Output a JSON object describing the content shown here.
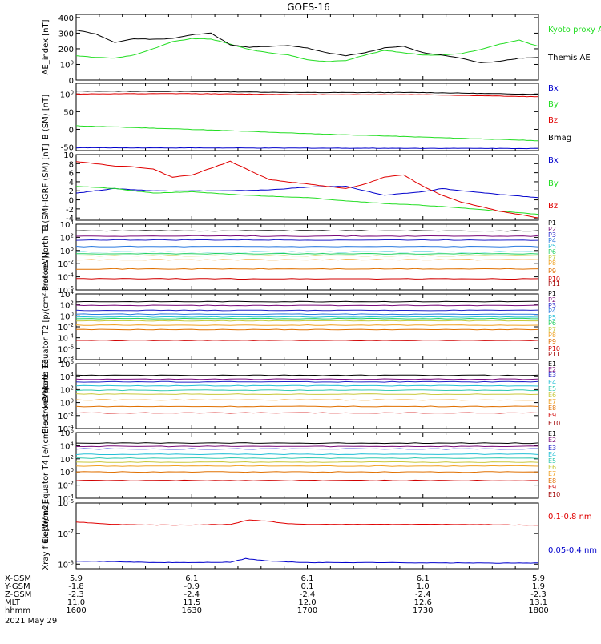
{
  "title": "GOES-16",
  "colors": {
    "black": "#000000",
    "red": "#e00000",
    "green": "#22dd22",
    "blue": "#0000cc",
    "P": [
      "#000000",
      "#7a0a7a",
      "#2020c8",
      "#2a7ae0",
      "#22bfd6",
      "#20d060",
      "#c8c83a",
      "#f0a020",
      "#e07000",
      "#d00000",
      "#a00000"
    ],
    "E": [
      "#000000",
      "#7a0a7a",
      "#2020c8",
      "#22bfd6",
      "#30c8b0",
      "#c8c83a",
      "#f0a020",
      "#e07000",
      "#d00000",
      "#a00000"
    ]
  },
  "xaxis": {
    "ticks": [
      "1600",
      "1630",
      "1700",
      "1730",
      "1800"
    ],
    "rows": [
      {
        "label": "X-GSM",
        "values": [
          "5.9",
          "6.1",
          "6.1",
          "6.1",
          "5.9"
        ]
      },
      {
        "label": "Y-GSM",
        "values": [
          "-1.8",
          "-0.9",
          "0.1",
          "1.0",
          "1.9"
        ]
      },
      {
        "label": "Z-GSM",
        "values": [
          "-2.3",
          "-2.4",
          "-2.4",
          "-2.4",
          "-2.3"
        ]
      },
      {
        "label": "MLT",
        "values": [
          "11.0",
          "11.5",
          "12.0",
          "12.6",
          "13.1"
        ]
      },
      {
        "label": "hhmm",
        "values": [
          "1600",
          "1630",
          "1700",
          "1730",
          "1800"
        ]
      }
    ],
    "date": "2021 May 29"
  },
  "chart_data": [
    {
      "type": "line",
      "ylabel": "AE_index [nT]",
      "ylim": [
        0,
        420
      ],
      "yticks": [
        "0",
        "100",
        "200",
        "300",
        "400"
      ],
      "series": [
        {
          "name": "Kyoto proxy AE",
          "color": "#22dd22",
          "x": [
            0,
            5,
            10,
            15,
            20,
            25,
            30,
            35,
            40,
            45,
            50,
            55,
            60,
            65,
            70,
            75,
            80,
            85,
            90,
            95,
            100,
            105,
            110,
            115,
            120
          ],
          "y": [
            155,
            145,
            140,
            160,
            200,
            245,
            265,
            262,
            230,
            195,
            175,
            160,
            130,
            118,
            125,
            160,
            190,
            175,
            160,
            160,
            170,
            195,
            230,
            255,
            215
          ]
        },
        {
          "name": "Themis AE",
          "color": "#000000",
          "x": [
            0,
            5,
            10,
            15,
            20,
            25,
            30,
            35,
            40,
            45,
            50,
            55,
            60,
            65,
            70,
            75,
            80,
            85,
            90,
            95,
            100,
            105,
            110,
            115,
            120
          ],
          "y": [
            320,
            295,
            240,
            265,
            260,
            265,
            290,
            300,
            225,
            210,
            215,
            220,
            205,
            175,
            155,
            175,
            205,
            215,
            175,
            160,
            140,
            110,
            120,
            140,
            145
          ]
        }
      ]
    },
    {
      "type": "line",
      "ylabel": "B (SM) [nT]",
      "ylim": [
        -60,
        130
      ],
      "yticks": [
        "-50",
        "0",
        "50",
        "100"
      ],
      "series": [
        {
          "name": "Bx",
          "color": "#0000cc",
          "x": [
            0,
            120
          ],
          "y": [
            -52,
            -54
          ]
        },
        {
          "name": "By",
          "color": "#22dd22",
          "x": [
            0,
            30,
            60,
            90,
            120
          ],
          "y": [
            10,
            0,
            -12,
            -22,
            -32
          ]
        },
        {
          "name": "Bz",
          "color": "#e00000",
          "x": [
            0,
            30,
            60,
            90,
            120
          ],
          "y": [
            100,
            101,
            98,
            98,
            92
          ]
        },
        {
          "name": "Bmag",
          "color": "#000000",
          "x": [
            0,
            30,
            60,
            90,
            120
          ],
          "y": [
            108,
            107,
            104,
            104,
            99
          ]
        }
      ]
    },
    {
      "type": "line",
      "ylabel": "B (SM)-IGRF (SM) [nT]",
      "ylim": [
        -4.5,
        10
      ],
      "yticks": [
        "-4",
        "-2",
        "0",
        "2",
        "4",
        "6",
        "8",
        "10"
      ],
      "series": [
        {
          "name": "Bx",
          "color": "#0000cc",
          "x": [
            0,
            10,
            20,
            30,
            40,
            50,
            60,
            70,
            80,
            90,
            95,
            100,
            110,
            120
          ],
          "y": [
            1.5,
            2.5,
            2.0,
            2.0,
            2.0,
            2.2,
            2.8,
            3.0,
            1.0,
            1.8,
            2.5,
            2.0,
            1.2,
            0.5
          ]
        },
        {
          "name": "By",
          "color": "#22dd22",
          "x": [
            0,
            10,
            20,
            30,
            40,
            50,
            60,
            70,
            80,
            90,
            100,
            110,
            120
          ],
          "y": [
            3.0,
            2.5,
            1.5,
            1.8,
            1.2,
            0.8,
            0.5,
            -0.2,
            -0.8,
            -1.2,
            -1.8,
            -2.5,
            -3.2
          ]
        },
        {
          "name": "Bz",
          "color": "#e00000",
          "x": [
            0,
            5,
            10,
            15,
            20,
            25,
            30,
            35,
            40,
            45,
            50,
            55,
            60,
            65,
            70,
            75,
            80,
            85,
            90,
            95,
            100,
            105,
            110,
            115,
            120
          ],
          "y": [
            8.5,
            8.0,
            7.5,
            7.3,
            6.8,
            5.0,
            5.5,
            7.0,
            8.5,
            6.5,
            4.5,
            4.0,
            3.5,
            3.0,
            2.5,
            3.5,
            5.0,
            5.5,
            3.0,
            1.0,
            -0.5,
            -1.5,
            -2.5,
            -3.2,
            -4.0
          ]
        }
      ]
    },
    {
      "type": "line",
      "ylabel": "Protons North T1",
      "ylim": [
        -6,
        4
      ],
      "yticks": [
        "10-6",
        "10-4",
        "10-2",
        "100",
        "102",
        "104"
      ],
      "series": [
        {
          "name": "P1",
          "color": "#000000",
          "levels": [
            3.0
          ]
        },
        {
          "name": "P2",
          "color": "#7a0a7a",
          "levels": [
            2.2
          ]
        },
        {
          "name": "P3",
          "color": "#2020c8",
          "levels": [
            1.6
          ]
        },
        {
          "name": "P4",
          "color": "#2a7ae0",
          "levels": [
            0.6
          ]
        },
        {
          "name": "P5",
          "color": "#22bfd6",
          "levels": [
            -0.2
          ]
        },
        {
          "name": "P6",
          "color": "#20d060",
          "levels": [
            -0.5
          ]
        },
        {
          "name": "P7",
          "color": "#c8c83a",
          "levels": [
            -0.8
          ]
        },
        {
          "name": "P8",
          "color": "#f0a020",
          "levels": [
            -1.4
          ]
        },
        {
          "name": "P9",
          "color": "#e07000",
          "levels": [
            -2.8
          ]
        },
        {
          "name": "P10",
          "color": "#d00000",
          "levels": [
            -4.3
          ]
        },
        {
          "name": "P11",
          "color": "#a00000",
          "levels": []
        }
      ]
    },
    {
      "type": "line",
      "ylabel": "Protons Equator T2 [p/(cm²-s-sr-keV)]",
      "ylim": [
        -8,
        4
      ],
      "yticks": [
        "10-8",
        "10-6",
        "10-4",
        "10-2",
        "100",
        "102",
        "104"
      ],
      "series": [
        {
          "name": "P1",
          "color": "#000000",
          "levels": [
            2.6
          ]
        },
        {
          "name": "P2",
          "color": "#7a0a7a",
          "levels": [
            1.9
          ]
        },
        {
          "name": "P3",
          "color": "#2020c8",
          "levels": [
            1.0
          ]
        },
        {
          "name": "P4",
          "color": "#2a7ae0",
          "levels": [
            0.3
          ]
        },
        {
          "name": "P5",
          "color": "#22bfd6",
          "levels": [
            -0.2
          ]
        },
        {
          "name": "P6",
          "color": "#20d060",
          "levels": [
            -0.5
          ]
        },
        {
          "name": "P7",
          "color": "#c8c83a",
          "levels": [
            -0.9
          ]
        },
        {
          "name": "P8",
          "color": "#f0a020",
          "levels": [
            -1.7
          ]
        },
        {
          "name": "P9",
          "color": "#e07000",
          "levels": [
            -2.5
          ]
        },
        {
          "name": "P10",
          "color": "#d00000",
          "levels": [
            -4.5
          ]
        },
        {
          "name": "P11",
          "color": "#a00000",
          "levels": []
        }
      ]
    },
    {
      "type": "line",
      "ylabel": "Electrons North T3",
      "ylim": [
        -4,
        6
      ],
      "yticks": [
        "10-4",
        "10-2",
        "100",
        "102",
        "104",
        "106"
      ],
      "series": [
        {
          "name": "E1",
          "color": "#000000",
          "levels": [
            4.2
          ]
        },
        {
          "name": "E2",
          "color": "#7a0a7a",
          "levels": [
            3.6
          ]
        },
        {
          "name": "E3",
          "color": "#2020c8",
          "levels": [
            3.2
          ]
        },
        {
          "name": "E4",
          "color": "#22bfd6",
          "levels": [
            2.6
          ]
        },
        {
          "name": "E5",
          "color": "#30c8b0",
          "levels": [
            1.9
          ]
        },
        {
          "name": "E6",
          "color": "#c8c83a",
          "levels": [
            1.3
          ]
        },
        {
          "name": "E7",
          "color": "#f0a020",
          "levels": [
            0.4
          ]
        },
        {
          "name": "E8",
          "color": "#e07000",
          "levels": [
            -0.6
          ]
        },
        {
          "name": "E9",
          "color": "#d00000",
          "levels": [
            -1.6
          ]
        },
        {
          "name": "E10",
          "color": "#a00000",
          "levels": []
        }
      ]
    },
    {
      "type": "line",
      "ylabel": "Electrons Equator T4 [e/(cm²-s-sr-keV)]",
      "ylim": [
        -4,
        6
      ],
      "yticks": [
        "10-4",
        "10-2",
        "100",
        "102",
        "104",
        "106"
      ],
      "series": [
        {
          "name": "E1",
          "color": "#000000",
          "levels": [
            4.4
          ]
        },
        {
          "name": "E2",
          "color": "#7a0a7a",
          "levels": [
            3.9
          ]
        },
        {
          "name": "E3",
          "color": "#2020c8",
          "levels": [
            3.5
          ]
        },
        {
          "name": "E4",
          "color": "#22bfd6",
          "levels": [
            2.7
          ]
        },
        {
          "name": "E5",
          "color": "#30c8b0",
          "levels": [
            2.1
          ]
        },
        {
          "name": "E6",
          "color": "#c8c83a",
          "levels": [
            1.5
          ]
        },
        {
          "name": "E7",
          "color": "#f0a020",
          "levels": [
            0.9
          ]
        },
        {
          "name": "E8",
          "color": "#e07000",
          "levels": [
            0.0
          ]
        },
        {
          "name": "E9",
          "color": "#d00000",
          "levels": [
            -1.3
          ]
        },
        {
          "name": "E10",
          "color": "#a00000",
          "levels": []
        }
      ]
    },
    {
      "type": "line",
      "ylabel": "Xray flux [W/m2]",
      "ylim": [
        -8.15,
        -6
      ],
      "yticks": [
        "10-8",
        "10-7",
        "10-6"
      ],
      "series": [
        {
          "name": "0.1-0.8 nm",
          "color": "#e00000",
          "x": [
            0,
            10,
            20,
            30,
            40,
            45,
            50,
            55,
            60,
            70,
            80,
            90,
            100,
            110,
            120
          ],
          "y": [
            -6.62,
            -6.7,
            -6.72,
            -6.72,
            -6.7,
            -6.55,
            -6.6,
            -6.68,
            -6.7,
            -6.7,
            -6.7,
            -6.7,
            -6.7,
            -6.71,
            -6.73
          ]
        },
        {
          "name": "0.05-0.4 nm",
          "color": "#0000cc",
          "x": [
            0,
            10,
            20,
            30,
            40,
            44,
            47,
            50,
            55,
            60,
            70,
            80,
            90,
            100,
            110,
            120
          ],
          "y": [
            -7.9,
            -7.92,
            -7.95,
            -7.95,
            -7.94,
            -7.82,
            -7.86,
            -7.9,
            -7.93,
            -7.95,
            -7.95,
            -7.95,
            -7.96,
            -7.96,
            -7.97,
            -7.96
          ]
        }
      ]
    }
  ]
}
